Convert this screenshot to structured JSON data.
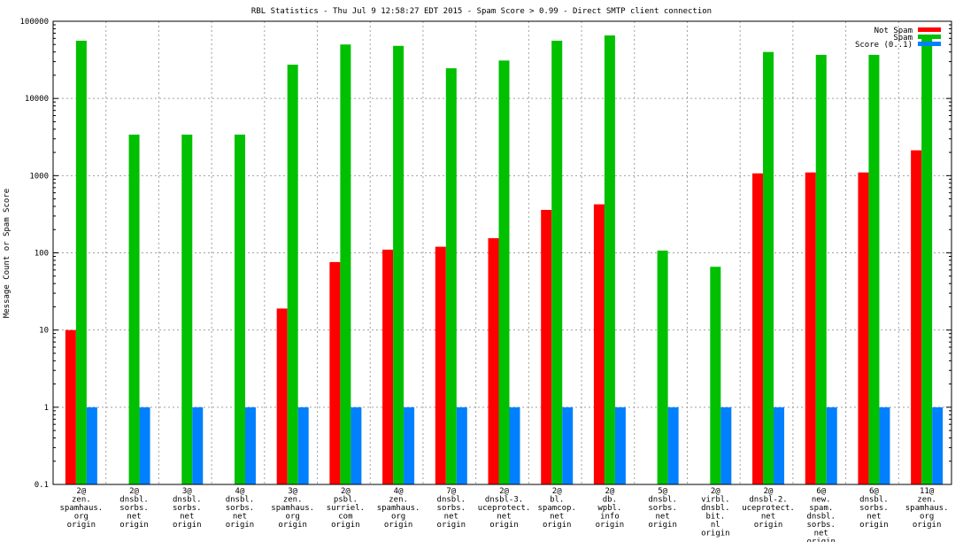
{
  "chart_data": {
    "type": "bar",
    "title": "RBL Statistics - Thu Jul  9 12:58:27 EDT 2015 - Spam Score > 0.99 - Direct SMTP client connection",
    "xlabel": "",
    "ylabel": "Message Count or Spam Score",
    "yscale": "log",
    "ylim": [
      0.1,
      100000
    ],
    "yticks": [
      "0.1",
      "1",
      "10",
      "100",
      "1000",
      "10000",
      "100000"
    ],
    "grid": true,
    "legend_position": "top-right",
    "categories": [
      [
        "2@",
        "zen.",
        "spamhaus.",
        "org",
        "origin"
      ],
      [
        "2@",
        "dnsbl.",
        "sorbs.",
        "net",
        "origin"
      ],
      [
        "3@",
        "dnsbl.",
        "sorbs.",
        "net",
        "origin"
      ],
      [
        "4@",
        "dnsbl.",
        "sorbs.",
        "net",
        "origin"
      ],
      [
        "3@",
        "zen.",
        "spamhaus.",
        "org",
        "origin"
      ],
      [
        "2@",
        "psbl.",
        "surriel.",
        "com",
        "origin"
      ],
      [
        "4@",
        "zen.",
        "spamhaus.",
        "org",
        "origin"
      ],
      [
        "7@",
        "dnsbl.",
        "sorbs.",
        "net",
        "origin"
      ],
      [
        "2@",
        "dnsbl-3.",
        "uceprotect.",
        "net",
        "origin"
      ],
      [
        "2@",
        "bl.",
        "spamcop.",
        "net",
        "origin"
      ],
      [
        "2@",
        "db.",
        "wpbl.",
        "info",
        "origin"
      ],
      [
        "5@",
        "dnsbl.",
        "sorbs.",
        "net",
        "origin"
      ],
      [
        "2@",
        "virbl.",
        "dnsbl.",
        "bit.",
        "nl",
        "origin"
      ],
      [
        "2@",
        "dnsbl-2.",
        "uceprotect.",
        "net",
        "origin"
      ],
      [
        "6@",
        "new.",
        "spam.",
        "dnsbl.",
        "sorbs.",
        "net",
        "origin"
      ],
      [
        "6@",
        "dnsbl.",
        "sorbs.",
        "net",
        "origin"
      ],
      [
        "11@",
        "zen.",
        "spamhaus.",
        "org",
        "origin"
      ]
    ],
    "series": [
      {
        "name": "Not Spam",
        "color": "#ff0000",
        "values": [
          10,
          null,
          null,
          null,
          19,
          76,
          110,
          120,
          155,
          360,
          425,
          null,
          null,
          1070,
          1100,
          1100,
          2130
        ]
      },
      {
        "name": "Spam",
        "color": "#00c000",
        "values": [
          56000,
          3400,
          3400,
          3400,
          27400,
          50000,
          48000,
          24600,
          31000,
          56000,
          65500,
          107,
          66,
          40000,
          36700,
          36700,
          64000
        ]
      },
      {
        "name": "Score (0..1)",
        "color": "#0080ff",
        "values": [
          1,
          1,
          1,
          1,
          1,
          1,
          1,
          1,
          1,
          1,
          1,
          1,
          1,
          1,
          1,
          1,
          1
        ]
      }
    ]
  }
}
